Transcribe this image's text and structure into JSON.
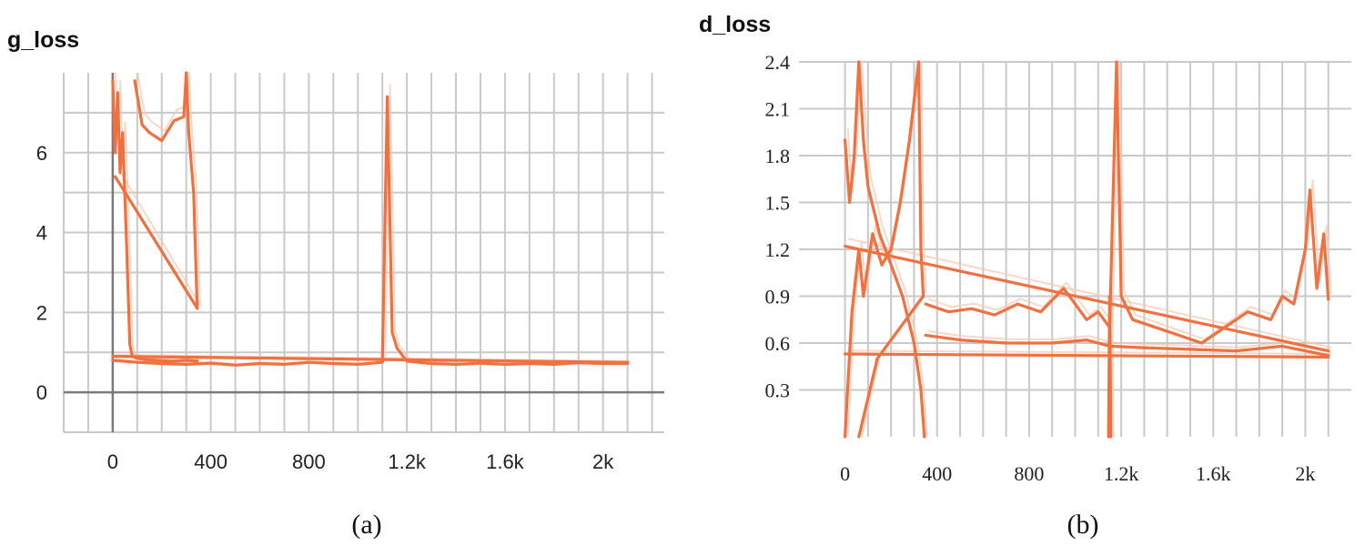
{
  "colors": {
    "series": "#f07040",
    "series_faint": "#f8c7b0",
    "grid": "#c9c9c9",
    "zero_axis": "#7a7a7a"
  },
  "chart_data": [
    {
      "type": "line",
      "title": "g_loss",
      "caption": "(a)",
      "xlim": [
        -200,
        2250
      ],
      "ylim": [
        -1,
        8
      ],
      "x_ticks": [
        0,
        400,
        800,
        1200,
        1600,
        2000
      ],
      "x_tick_labels": [
        "0",
        "400",
        "800",
        "1.2k",
        "1.6k",
        "2k"
      ],
      "y_ticks": [
        0,
        2,
        4,
        6
      ],
      "y_tick_labels": [
        "0",
        "2",
        "4",
        "6"
      ],
      "grid": true,
      "series": [
        {
          "x": [
            0,
            10,
            20,
            30,
            40,
            55,
            70,
            80,
            100,
            130,
            180,
            240,
            300,
            345
          ],
          "y": [
            7.8,
            6.0,
            7.5,
            5.5,
            6.5,
            4.0,
            1.2,
            0.9,
            0.85,
            0.82,
            0.8,
            0.78,
            0.8,
            0.78
          ]
        },
        {
          "x": [
            10,
            345
          ],
          "y": [
            5.4,
            2.1
          ]
        },
        {
          "x": [
            90,
            120,
            150,
            200,
            250,
            290,
            300,
            310,
            330,
            340,
            345
          ],
          "y": [
            7.8,
            6.7,
            6.5,
            6.3,
            6.8,
            6.9,
            8.0,
            6.5,
            5.0,
            3.0,
            2.1
          ]
        },
        {
          "x": [
            0,
            100,
            200,
            300,
            400,
            500,
            600,
            700,
            800,
            900,
            1000,
            1100,
            1120,
            1140,
            1160,
            1200,
            1300,
            1400,
            1500,
            1600,
            1700,
            1800,
            1900,
            2000,
            2100
          ],
          "y": [
            0.8,
            0.75,
            0.72,
            0.7,
            0.73,
            0.68,
            0.72,
            0.7,
            0.75,
            0.72,
            0.7,
            0.75,
            7.4,
            1.5,
            1.1,
            0.78,
            0.72,
            0.7,
            0.73,
            0.7,
            0.72,
            0.7,
            0.74,
            0.72,
            0.72
          ]
        },
        {
          "x": [
            0,
            2100
          ],
          "y": [
            0.9,
            0.75
          ]
        }
      ]
    },
    {
      "type": "line",
      "title": "d_loss",
      "caption": "(b)",
      "xlim": [
        -200,
        2200
      ],
      "ylim": [
        0,
        2.4
      ],
      "x_ticks": [
        0,
        400,
        800,
        1200,
        1600,
        2000
      ],
      "x_tick_labels": [
        "0",
        "400",
        "800",
        "1.2k",
        "1.6k",
        "2k"
      ],
      "y_ticks": [
        0.3,
        0.6,
        0.9,
        1.2,
        1.5,
        1.8,
        2.1,
        2.4
      ],
      "y_tick_labels": [
        "0.3",
        "0.6",
        "0.9",
        "1.2",
        "1.5",
        "1.8",
        "2.1",
        "2.4"
      ],
      "grid": true,
      "series": [
        {
          "x": [
            0,
            20,
            40,
            60,
            80,
            100,
            150,
            200,
            250,
            300,
            330,
            345
          ],
          "y": [
            1.9,
            1.5,
            1.8,
            2.4,
            1.9,
            1.6,
            1.3,
            1.1,
            0.9,
            0.6,
            0.3,
            0.0
          ]
        },
        {
          "x": [
            0,
            30,
            60,
            80,
            120,
            160,
            200,
            240,
            280,
            320,
            330,
            340
          ],
          "y": [
            0.0,
            0.8,
            1.2,
            0.9,
            1.3,
            1.1,
            1.2,
            1.5,
            1.9,
            2.4,
            1.2,
            0.9
          ]
        },
        {
          "x": [
            60,
            140,
            340
          ],
          "y": [
            0.0,
            0.5,
            0.9
          ]
        },
        {
          "x": [
            0,
            2100
          ],
          "y": [
            1.22,
            0.55
          ]
        },
        {
          "x": [
            0,
            2100
          ],
          "y": [
            0.53,
            0.51
          ]
        },
        {
          "x": [
            350,
            450,
            550,
            650,
            750,
            850,
            950,
            1050,
            1100,
            1150,
            1180,
            1200,
            1250,
            1350,
            1450,
            1550,
            1650,
            1750,
            1850,
            1900,
            1950,
            2000,
            2020,
            2050,
            2080,
            2100
          ],
          "y": [
            0.85,
            0.8,
            0.82,
            0.78,
            0.85,
            0.8,
            0.95,
            0.75,
            0.8,
            0.7,
            2.4,
            0.9,
            0.75,
            0.7,
            0.65,
            0.6,
            0.7,
            0.8,
            0.75,
            0.9,
            0.85,
            1.2,
            1.58,
            0.95,
            1.3,
            0.88
          ]
        },
        {
          "x": [
            350,
            500,
            700,
            900,
            1050,
            1150,
            1300,
            1500,
            1700,
            1900,
            2000,
            2100
          ],
          "y": [
            0.65,
            0.62,
            0.6,
            0.6,
            0.62,
            0.58,
            0.57,
            0.56,
            0.55,
            0.58,
            0.55,
            0.52
          ]
        },
        {
          "x": [
            1145,
            1150,
            1155
          ],
          "y": [
            0.0,
            0.9,
            0.0
          ]
        }
      ]
    }
  ]
}
